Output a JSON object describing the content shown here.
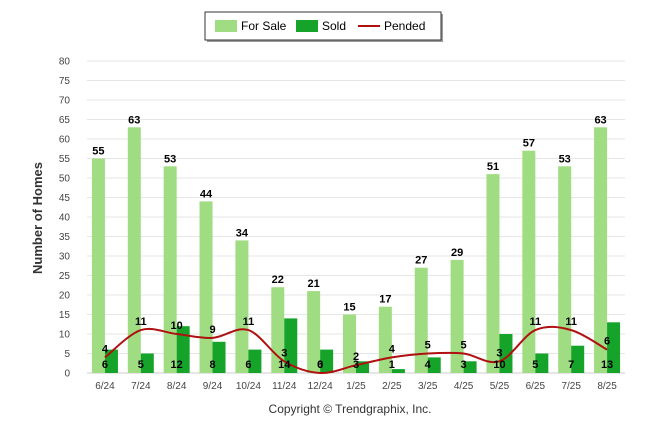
{
  "chart_data": {
    "type": "bar",
    "categories": [
      "6/24",
      "7/24",
      "8/24",
      "9/24",
      "10/24",
      "11/24",
      "12/24",
      "1/25",
      "2/25",
      "3/25",
      "4/25",
      "5/25",
      "6/25",
      "7/25",
      "8/25"
    ],
    "series": [
      {
        "name": "For Sale",
        "kind": "bar",
        "color": "#a0dc82",
        "values": [
          55,
          63,
          53,
          44,
          34,
          22,
          21,
          15,
          17,
          27,
          29,
          51,
          57,
          53,
          63
        ]
      },
      {
        "name": "Sold",
        "kind": "bar",
        "color": "#16a32a",
        "values": [
          6,
          5,
          12,
          8,
          6,
          14,
          6,
          3,
          1,
          4,
          3,
          10,
          5,
          7,
          13
        ]
      },
      {
        "name": "Pended",
        "kind": "line",
        "color": "#b01010",
        "values": [
          4,
          11,
          10,
          9,
          11,
          3,
          0,
          2,
          4,
          5,
          5,
          3,
          11,
          11,
          6
        ]
      }
    ],
    "ylabel": "Number of Homes",
    "xlabel": "",
    "ylim": [
      0,
      80
    ],
    "yticks": [
      0,
      5,
      10,
      15,
      20,
      25,
      30,
      35,
      40,
      45,
      50,
      55,
      60,
      65,
      70,
      75,
      80
    ],
    "grid": true,
    "legend_position": "top-center",
    "footer": "Copyright © Trendgraphix, Inc."
  }
}
